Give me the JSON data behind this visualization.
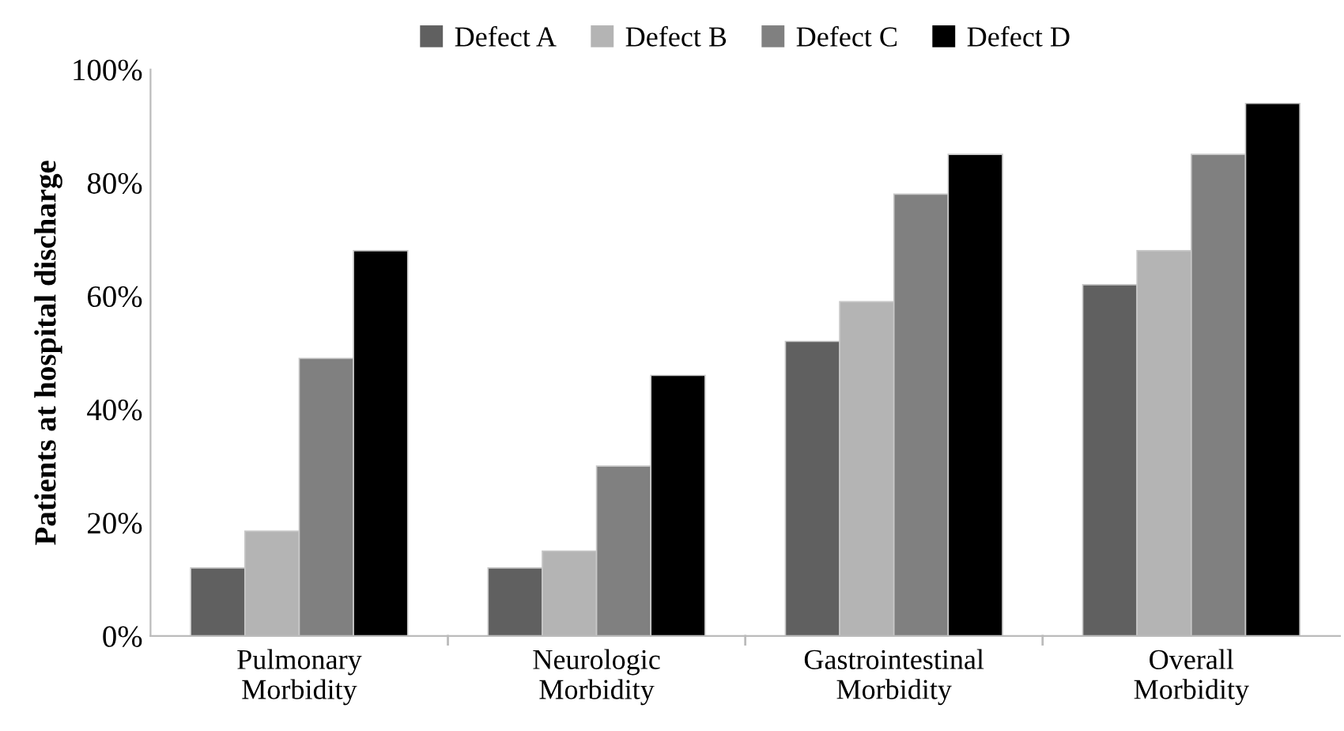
{
  "chart_data": {
    "type": "bar",
    "ylabel": "Patients at hospital discharge",
    "categories": [
      "Pulmonary\nMorbidity",
      "Neurologic\nMorbidity",
      "Gastrointestinal\nMorbidity",
      "Overall\nMorbidity"
    ],
    "series": [
      {
        "name": "Defect A",
        "color": "#606060",
        "values": [
          12,
          12,
          52,
          62
        ]
      },
      {
        "name": "Defect B",
        "color": "#b4b4b4",
        "values": [
          18.5,
          15,
          59,
          68
        ]
      },
      {
        "name": "Defect C",
        "color": "#808080",
        "values": [
          49,
          30,
          78,
          85
        ]
      },
      {
        "name": "Defect D",
        "color": "#000000",
        "values": [
          68,
          46,
          85,
          94
        ]
      }
    ],
    "ylim": [
      0,
      100
    ],
    "yticks": [
      {
        "value": 0,
        "label": "0%"
      },
      {
        "value": 20,
        "label": "20%"
      },
      {
        "value": 40,
        "label": "40%"
      },
      {
        "value": 60,
        "label": "60%"
      },
      {
        "value": 80,
        "label": "80%"
      },
      {
        "value": 100,
        "label": "100%"
      }
    ],
    "grid": false,
    "legend": "top"
  }
}
